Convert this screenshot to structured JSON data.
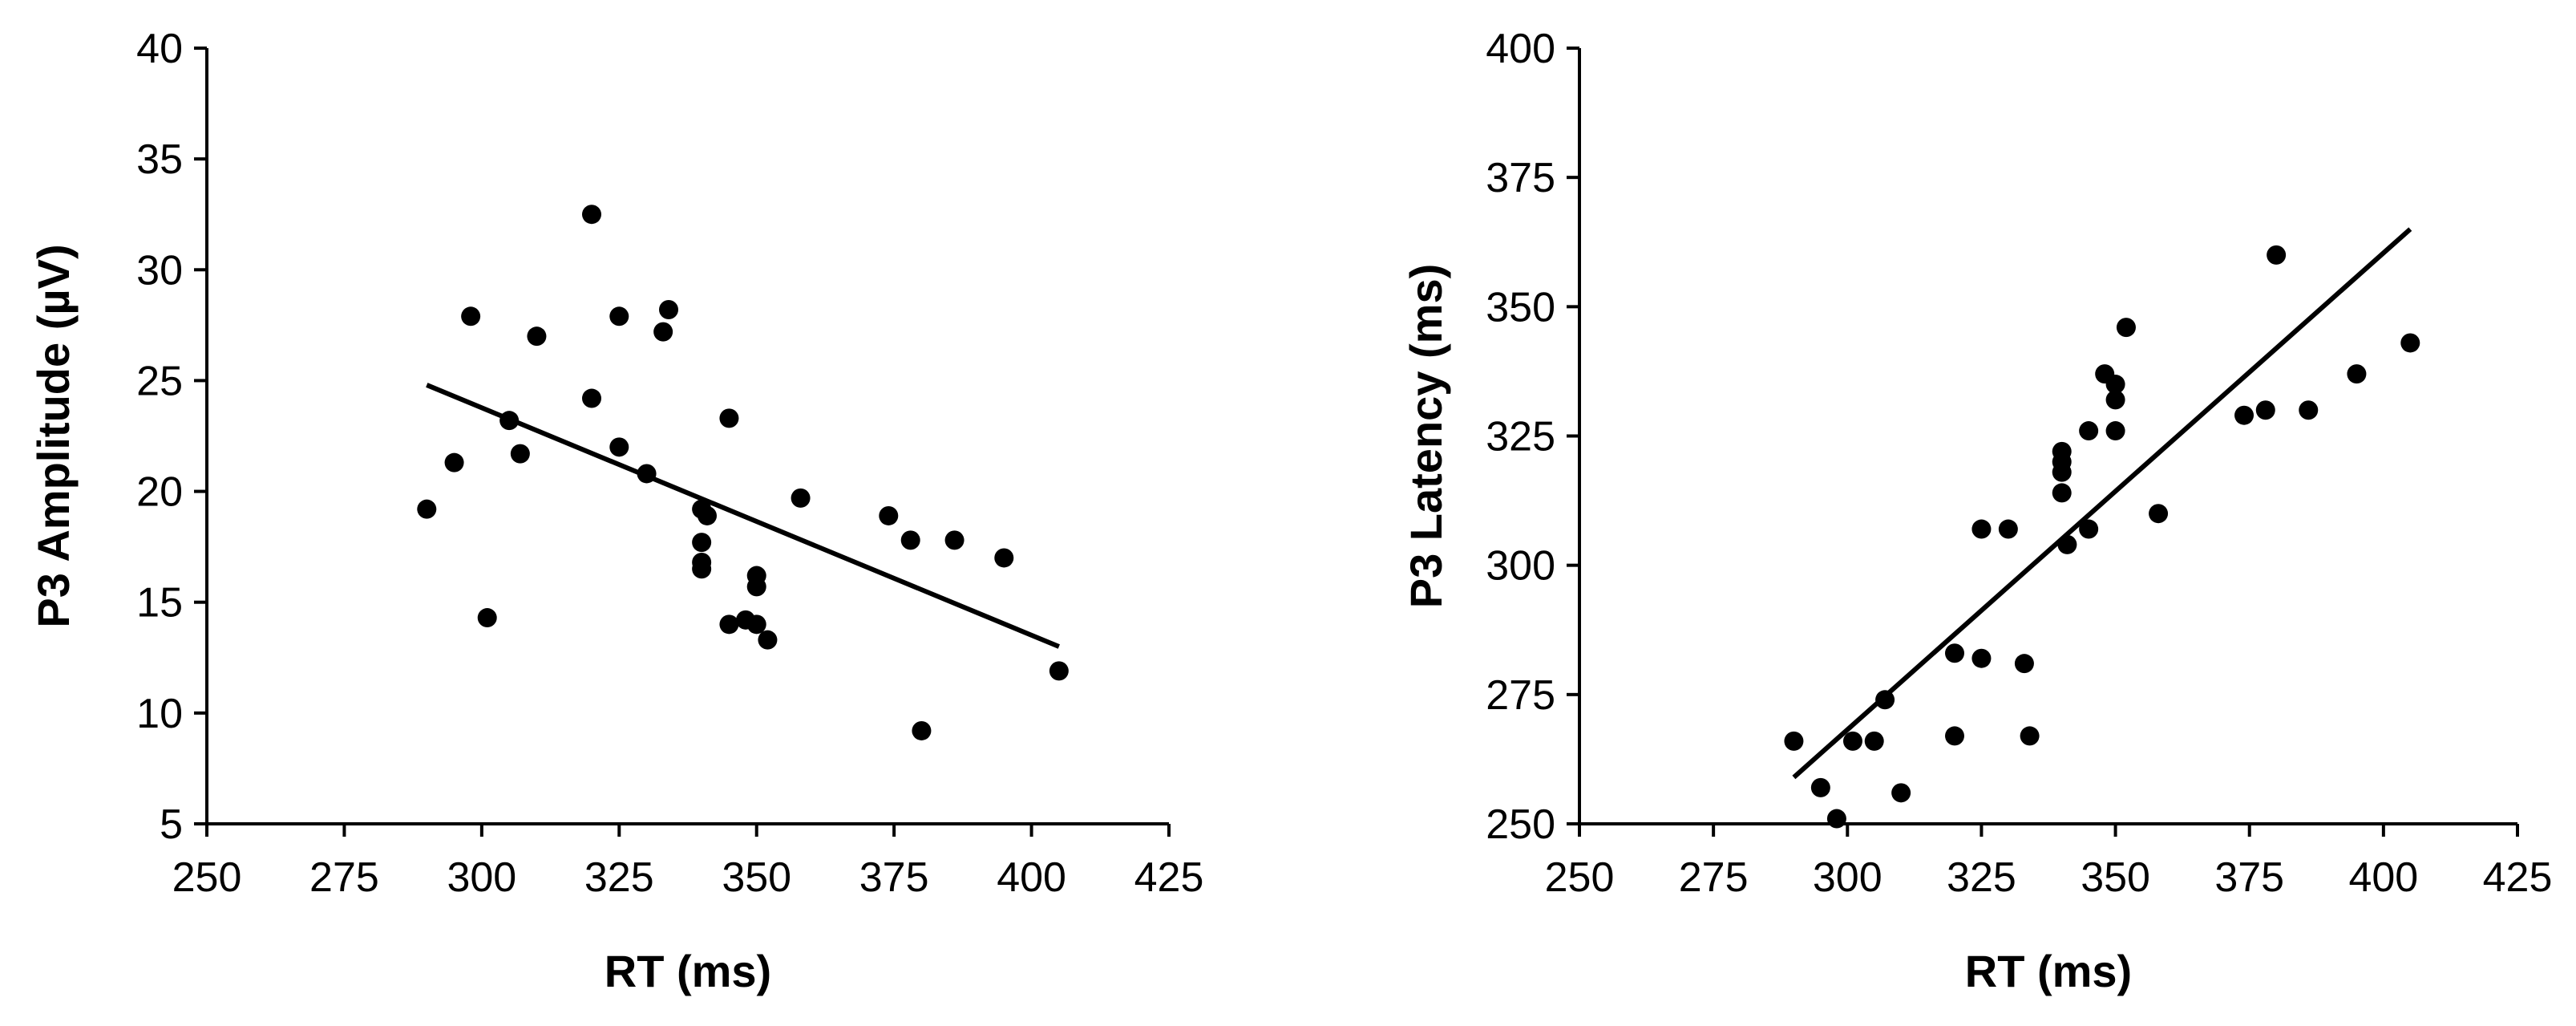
{
  "colors": {
    "marker": "#000000",
    "axis": "#000000",
    "background": "#ffffff"
  },
  "chart_data": [
    {
      "type": "scatter",
      "title": "",
      "xlabel": "RT (ms)",
      "ylabel": "P3 Amplitude (µV)",
      "xlim": [
        250,
        425
      ],
      "ylim": [
        5,
        40
      ],
      "xticks": [
        250,
        275,
        300,
        325,
        350,
        375,
        400,
        425
      ],
      "yticks": [
        5,
        10,
        15,
        20,
        25,
        30,
        35,
        40
      ],
      "grid": false,
      "legend": "none",
      "trendline": {
        "x": [
          290,
          405
        ],
        "y": [
          24.8,
          13.0
        ]
      },
      "points": [
        [
          290,
          19.2
        ],
        [
          295,
          21.3
        ],
        [
          298,
          27.9
        ],
        [
          301,
          14.3
        ],
        [
          305,
          23.2
        ],
        [
          307,
          21.7
        ],
        [
          310,
          27.0
        ],
        [
          320,
          32.5
        ],
        [
          320,
          24.2
        ],
        [
          325,
          27.9
        ],
        [
          325,
          22.0
        ],
        [
          330,
          20.8
        ],
        [
          333,
          27.2
        ],
        [
          334,
          28.2
        ],
        [
          340,
          19.2
        ],
        [
          340,
          17.7
        ],
        [
          340,
          16.8
        ],
        [
          340,
          16.5
        ],
        [
          341,
          18.9
        ],
        [
          345,
          23.3
        ],
        [
          345,
          14.0
        ],
        [
          348,
          14.2
        ],
        [
          350,
          16.2
        ],
        [
          350,
          15.7
        ],
        [
          350,
          14.0
        ],
        [
          352,
          13.3
        ],
        [
          358,
          19.7
        ],
        [
          374,
          18.9
        ],
        [
          378,
          17.8
        ],
        [
          380,
          9.2
        ],
        [
          386,
          17.8
        ],
        [
          395,
          17.0
        ],
        [
          405,
          11.9
        ]
      ]
    },
    {
      "type": "scatter",
      "title": "",
      "xlabel": "RT (ms)",
      "ylabel": "P3 Latency  (ms)",
      "xlim": [
        250,
        425
      ],
      "ylim": [
        250,
        400
      ],
      "xticks": [
        250,
        275,
        300,
        325,
        350,
        375,
        400,
        425
      ],
      "yticks": [
        250,
        275,
        300,
        325,
        350,
        375,
        400
      ],
      "grid": false,
      "legend": "none",
      "trendline": {
        "x": [
          290,
          405
        ],
        "y": [
          259,
          365
        ]
      },
      "points": [
        [
          290,
          266
        ],
        [
          295,
          257
        ],
        [
          298,
          251
        ],
        [
          301,
          266
        ],
        [
          305,
          266
        ],
        [
          307,
          274
        ],
        [
          310,
          256
        ],
        [
          320,
          283
        ],
        [
          320,
          267
        ],
        [
          325,
          307
        ],
        [
          325,
          282
        ],
        [
          330,
          307
        ],
        [
          333,
          281
        ],
        [
          334,
          267
        ],
        [
          340,
          322
        ],
        [
          340,
          320
        ],
        [
          340,
          318
        ],
        [
          340,
          314
        ],
        [
          341,
          304
        ],
        [
          345,
          326
        ],
        [
          345,
          307
        ],
        [
          348,
          337
        ],
        [
          350,
          335
        ],
        [
          350,
          332
        ],
        [
          350,
          326
        ],
        [
          352,
          346
        ],
        [
          358,
          310
        ],
        [
          374,
          329
        ],
        [
          378,
          330
        ],
        [
          380,
          360
        ],
        [
          386,
          330
        ],
        [
          395,
          337
        ],
        [
          405,
          343
        ]
      ]
    }
  ]
}
